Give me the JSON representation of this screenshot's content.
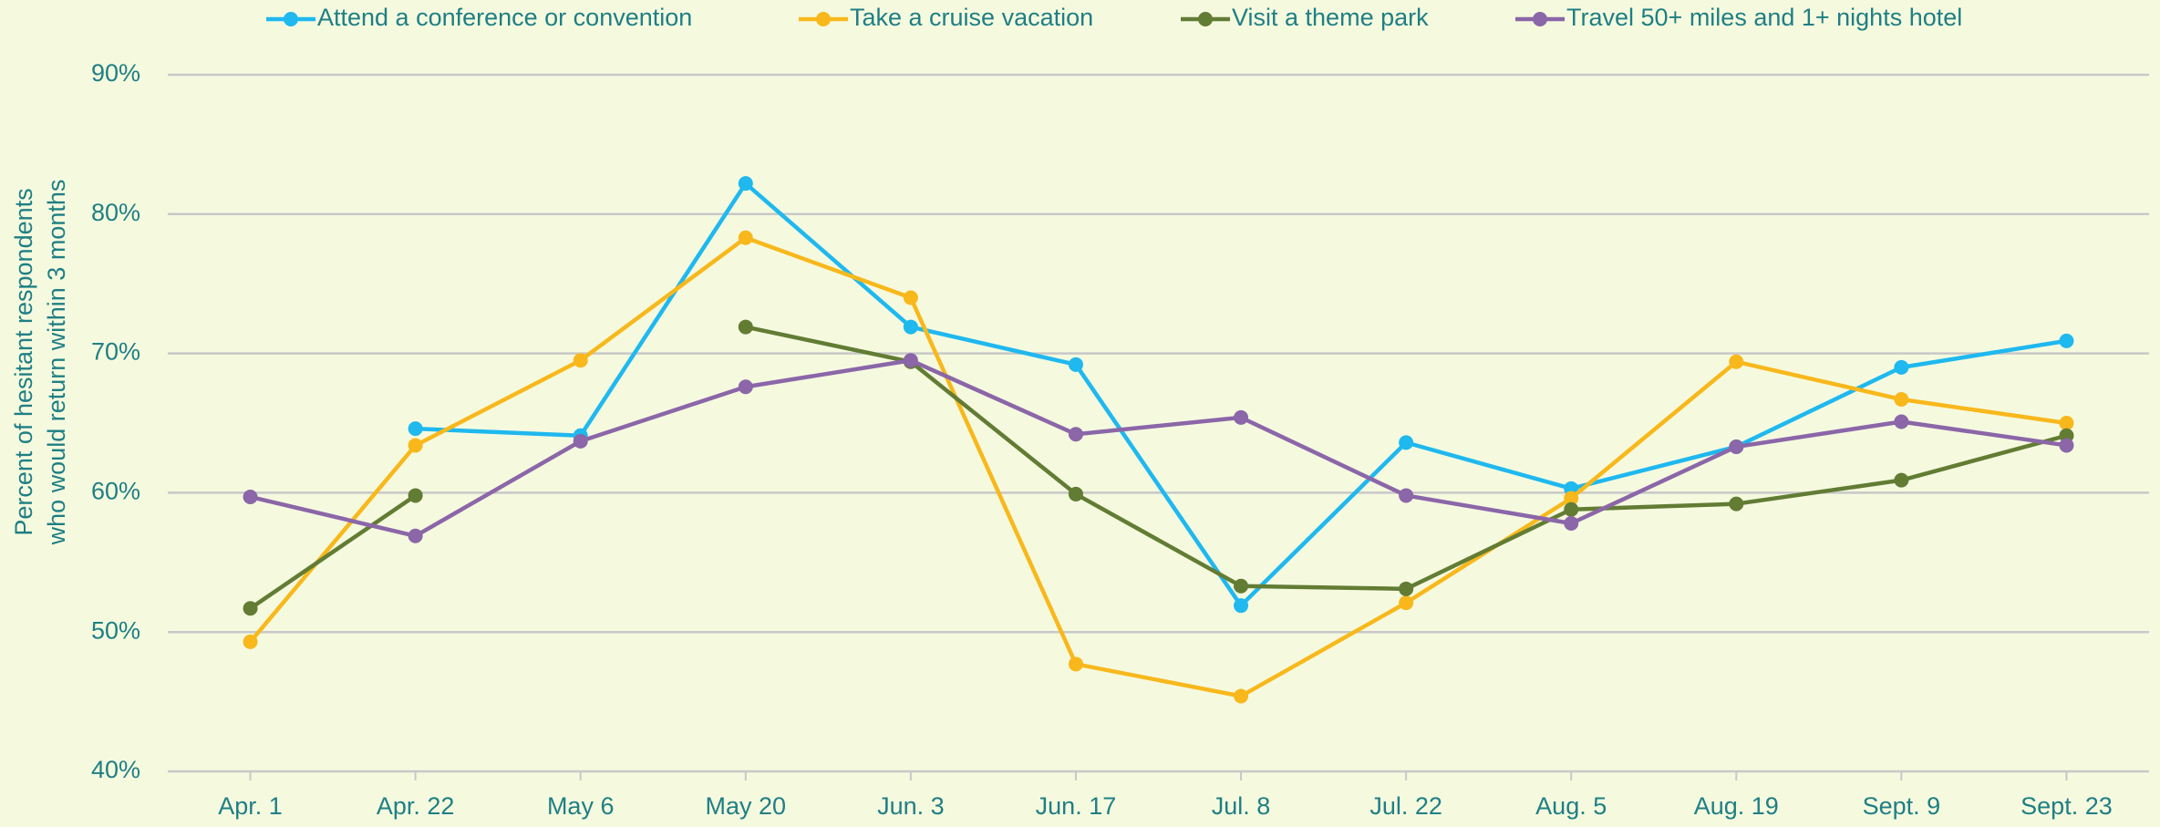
{
  "chart_data": {
    "type": "line",
    "y_label": [
      "Percent of hesitant respondents",
      "who would return within 3 months"
    ],
    "categories": [
      "Apr. 1",
      "Apr. 22",
      "May 6",
      "May 20",
      "Jun. 3",
      "Jun. 17",
      "Jul. 8",
      "Jul. 22",
      "Aug. 5",
      "Aug. 19",
      "Sept. 9",
      "Sept. 23"
    ],
    "series": [
      {
        "name": "Attend a conference or convention",
        "color": "#1fb8ef",
        "values": [
          null,
          64.6,
          64.1,
          82.2,
          71.9,
          69.2,
          51.9,
          63.6,
          60.3,
          63.3,
          69.0,
          70.9
        ]
      },
      {
        "name": "Take a cruise vacation",
        "color": "#f8b81c",
        "values": [
          49.3,
          63.4,
          69.5,
          78.3,
          74.0,
          47.7,
          45.4,
          52.1,
          59.6,
          69.4,
          66.7,
          65.0
        ]
      },
      {
        "name": "Visit a theme park",
        "color": "#627c34",
        "values": [
          51.7,
          59.8,
          null,
          71.9,
          69.4,
          59.9,
          53.3,
          53.1,
          58.8,
          59.2,
          60.9,
          64.1
        ]
      },
      {
        "name": "Travel 50+ miles and 1+ nights hotel",
        "color": "#8b66a8",
        "values": [
          59.7,
          56.9,
          63.7,
          67.6,
          69.5,
          64.2,
          65.4,
          59.8,
          57.8,
          63.3,
          65.1,
          63.4
        ]
      }
    ],
    "ylim": [
      40,
      90
    ],
    "yticks": [
      {
        "value": 40,
        "label": "40%"
      },
      {
        "value": 50,
        "label": "50%"
      },
      {
        "value": 60,
        "label": "60%"
      },
      {
        "value": 70,
        "label": "70%"
      },
      {
        "value": 80,
        "label": "80%"
      },
      {
        "value": 90,
        "label": "90%"
      }
    ],
    "grid": true,
    "legend": "top"
  }
}
